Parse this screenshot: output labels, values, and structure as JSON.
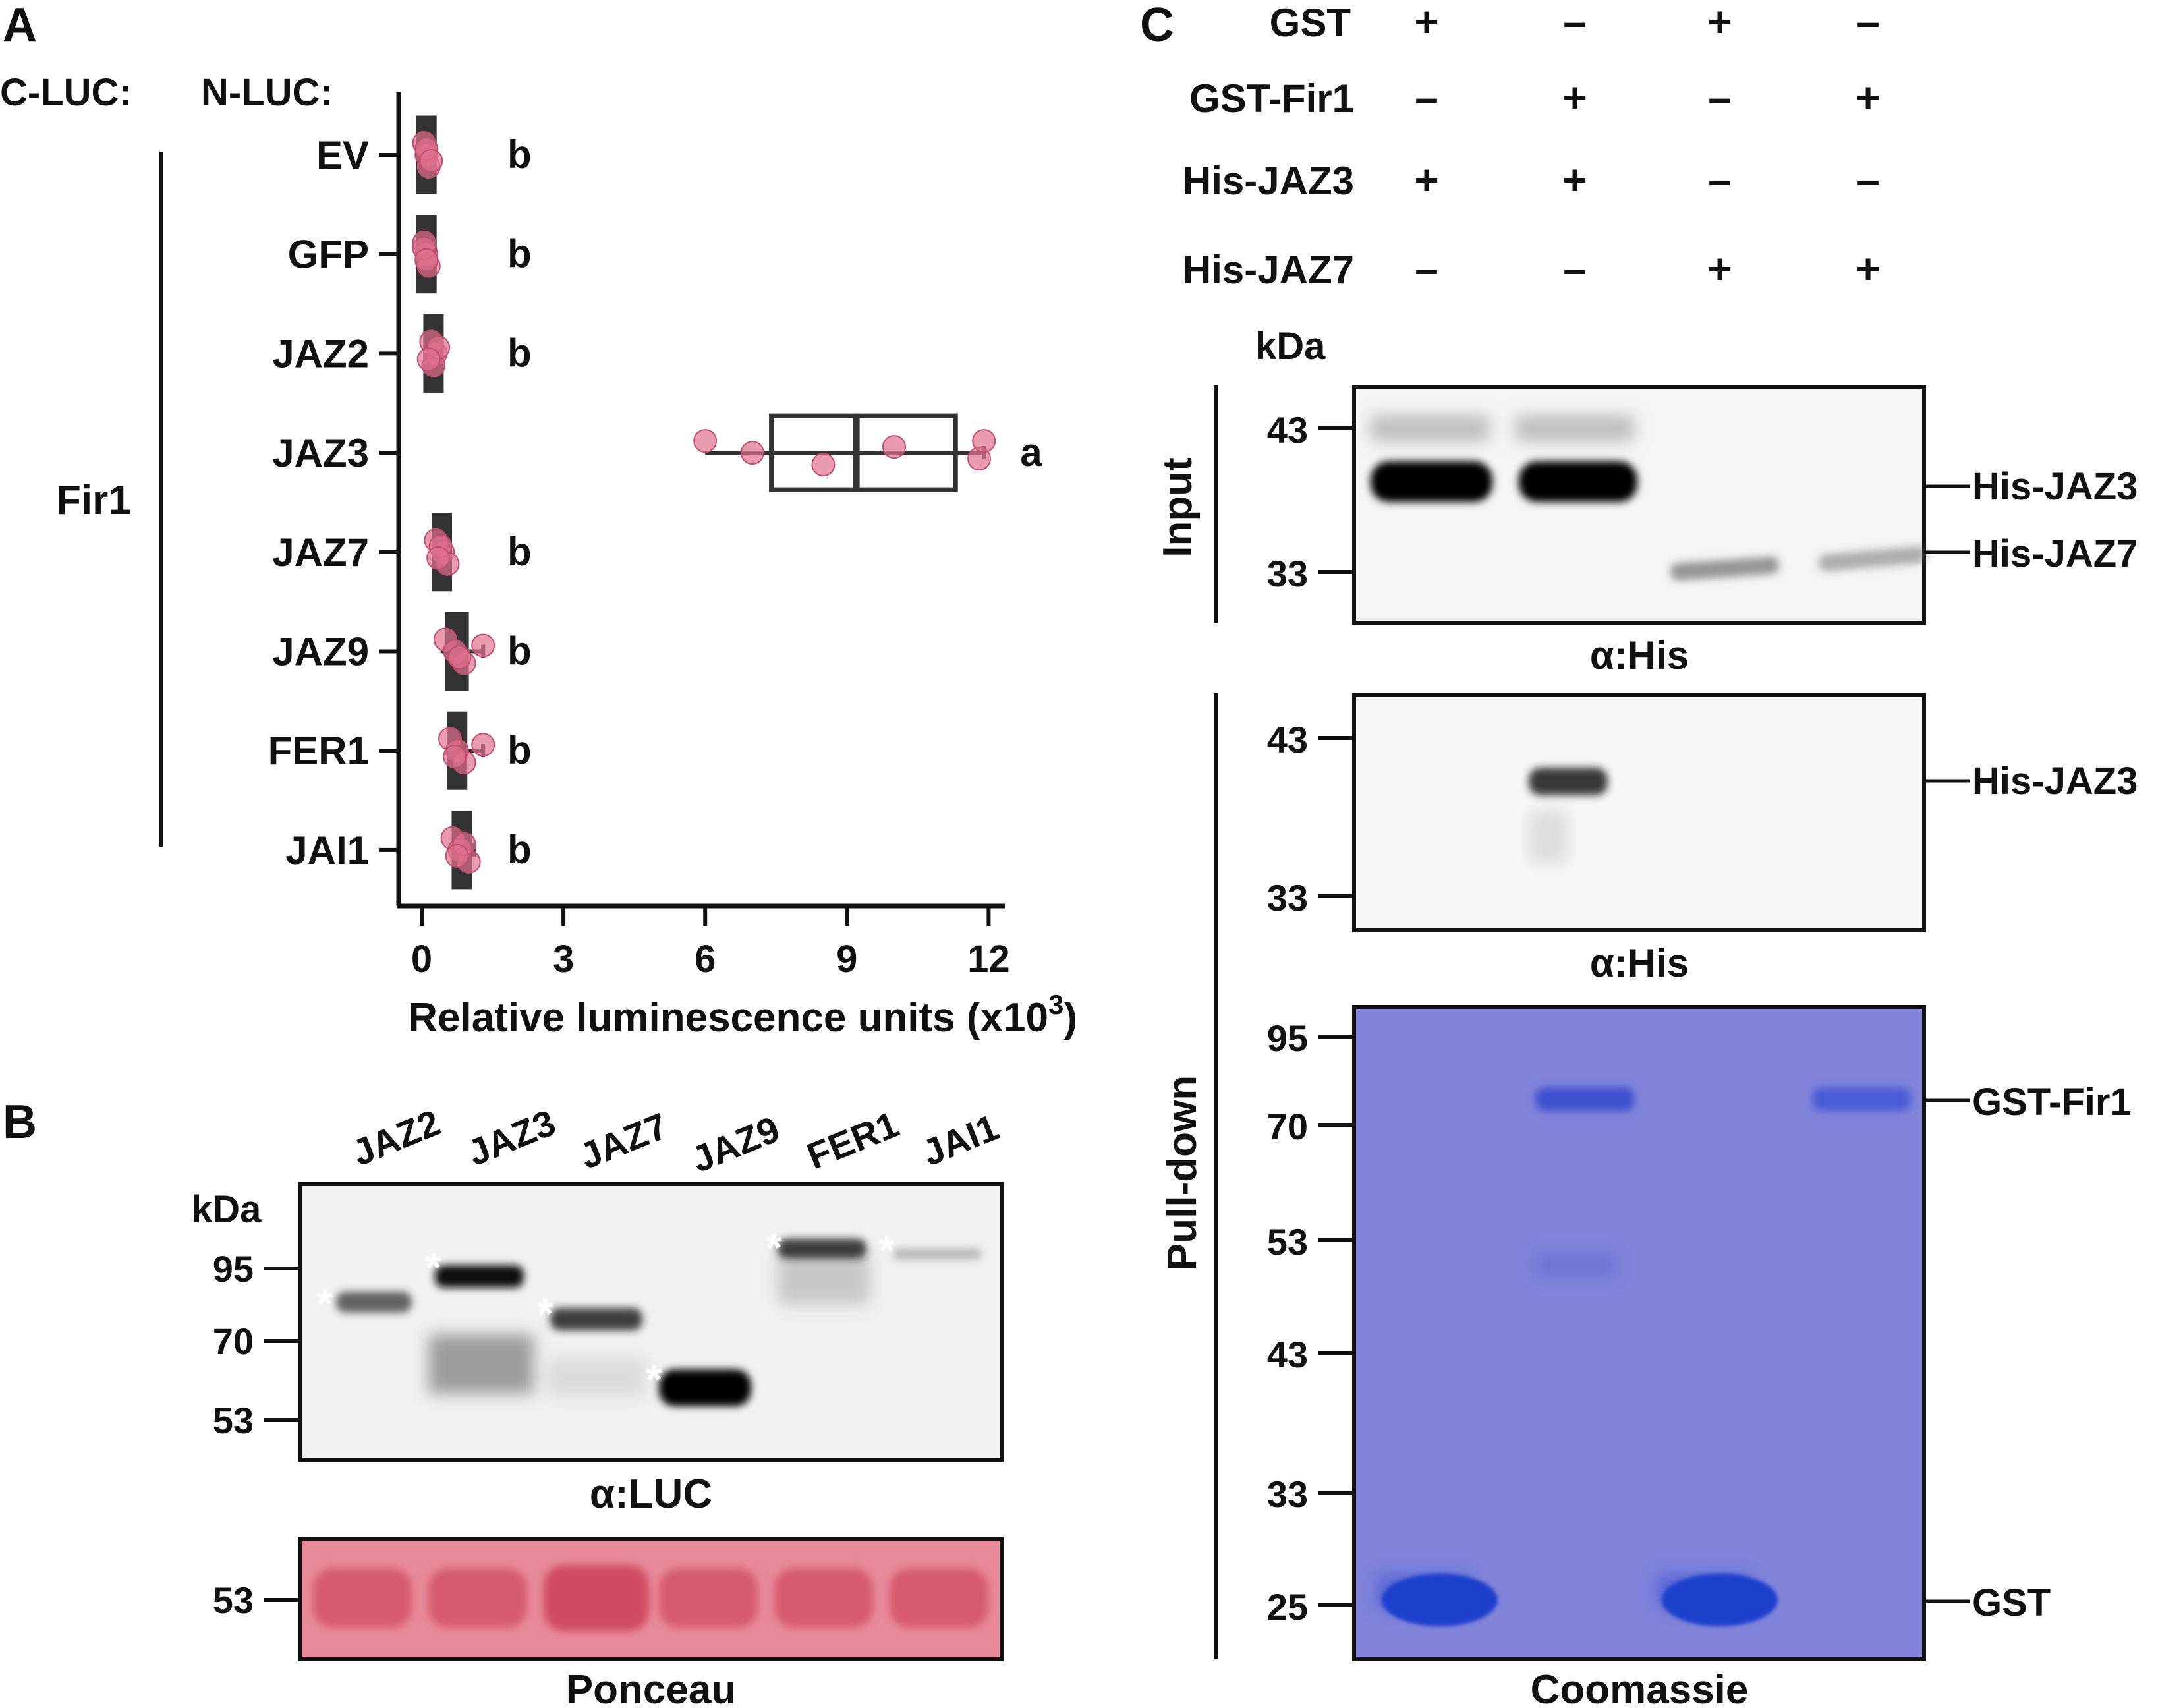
{
  "panel_labels": {
    "a": "A",
    "b": "B",
    "c": "C"
  },
  "panel_a": {
    "header_cluc": "C-LUC:",
    "header_nluc": "N-LUC:",
    "group_label": "Fir1",
    "xlabel": "Relative luminescence units (x10",
    "xlabel_exp": "3",
    "xlabel_close": ")",
    "chart_data": {
      "type": "box",
      "orientation": "horizontal",
      "categories": [
        "EV",
        "GFP",
        "JAZ2",
        "JAZ3",
        "JAZ7",
        "JAZ9",
        "FER1",
        "JAI1"
      ],
      "letters": [
        "b",
        "b",
        "b",
        "a",
        "b",
        "b",
        "b",
        "b"
      ],
      "xticks": [
        "0",
        "3",
        "6",
        "9",
        "12"
      ],
      "xlim": [
        0,
        12.3
      ],
      "boxes": [
        {
          "min": 0.0,
          "q1": 0.05,
          "median": 0.1,
          "q3": 0.15,
          "max": 0.2
        },
        {
          "min": 0.0,
          "q1": 0.05,
          "median": 0.1,
          "q3": 0.15,
          "max": 0.2
        },
        {
          "min": 0.1,
          "q1": 0.15,
          "median": 0.25,
          "q3": 0.35,
          "max": 0.4
        },
        {
          "min": 6.0,
          "q1": 7.4,
          "median": 9.2,
          "q3": 11.3,
          "max": 11.9
        },
        {
          "min": 0.25,
          "q1": 0.3,
          "median": 0.45,
          "q3": 0.55,
          "max": 0.6
        },
        {
          "min": 0.4,
          "q1": 0.55,
          "median": 0.75,
          "q3": 0.95,
          "max": 1.3
        },
        {
          "min": 0.55,
          "q1": 0.6,
          "median": 0.75,
          "q3": 0.9,
          "max": 1.3
        },
        {
          "min": 0.6,
          "q1": 0.7,
          "median": 0.85,
          "q3": 1.0,
          "max": 1.1
        }
      ],
      "points": [
        [
          0.05,
          0.1,
          0.15,
          0.1,
          0.2
        ],
        [
          0.05,
          0.1,
          0.15,
          0.05,
          0.1
        ],
        [
          0.2,
          0.3,
          0.25,
          0.35,
          0.15
        ],
        [
          6.0,
          7.0,
          8.5,
          10.0,
          11.8,
          11.9
        ],
        [
          0.3,
          0.45,
          0.55,
          0.4,
          0.35
        ],
        [
          0.5,
          0.7,
          0.9,
          1.3,
          0.8
        ],
        [
          0.6,
          0.75,
          0.9,
          1.3,
          0.7
        ],
        [
          0.65,
          0.8,
          1.0,
          0.9,
          0.75
        ]
      ],
      "point_color": "#e0708e"
    }
  },
  "panel_b": {
    "lanes": [
      "JAZ2",
      "JAZ3",
      "JAZ7",
      "JAZ9",
      "FER1",
      "JAI1"
    ],
    "kda": "kDa",
    "markers": [
      "95",
      "70",
      "53"
    ],
    "blot_label": "α:LUC",
    "ponceau_marker": "53",
    "ponceau_label": "Ponceau",
    "asterisk": "*"
  },
  "panel_c": {
    "conditions": [
      {
        "name": "GST",
        "values": [
          "+",
          "–",
          "+",
          "–"
        ]
      },
      {
        "name": "GST-Fir1",
        "values": [
          "–",
          "+",
          "–",
          "+"
        ]
      },
      {
        "name": "His-JAZ3",
        "values": [
          "+",
          "+",
          "–",
          "–"
        ]
      },
      {
        "name": "His-JAZ7",
        "values": [
          "–",
          "–",
          "+",
          "+"
        ]
      }
    ],
    "kda": "kDa",
    "input_label": "Input",
    "pulldown_label": "Pull-down",
    "input_blot": {
      "markers": [
        "43",
        "33"
      ],
      "bands": [
        "His-JAZ3",
        "His-JAZ7"
      ],
      "label": "α:His"
    },
    "pulldown_blot": {
      "markers": [
        "43",
        "33"
      ],
      "bands": [
        "His-JAZ3"
      ],
      "label": "α:His"
    },
    "coomassie": {
      "markers": [
        "95",
        "70",
        "53",
        "43",
        "33",
        "25"
      ],
      "bands": [
        "GST-Fir1",
        "GST"
      ],
      "label": "Coomassie"
    }
  },
  "colors": {
    "ponceau": "#d9566e",
    "coomassie_bg": "#7c7ed6",
    "coomassie_band": "#1f3fcc",
    "point": "#e0708e"
  }
}
